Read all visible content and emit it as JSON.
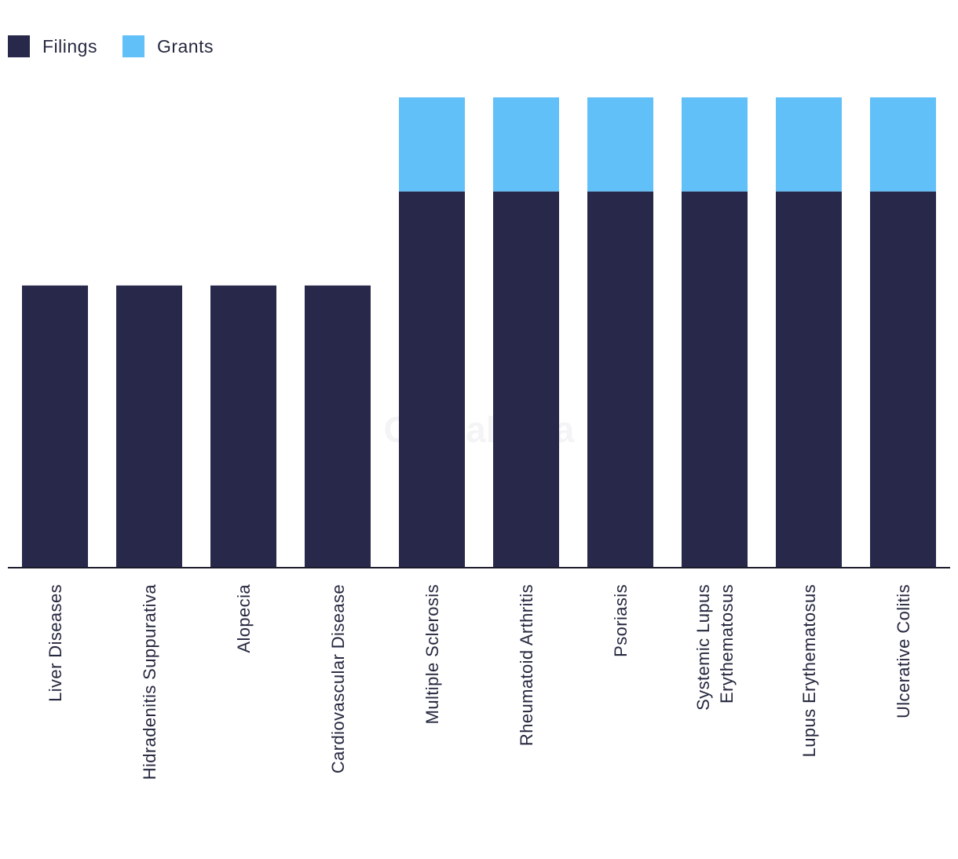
{
  "chart_data": {
    "type": "bar",
    "stacked": true,
    "title": "",
    "xlabel": "",
    "ylabel": "",
    "ylim": [
      0,
      2
    ],
    "grid": false,
    "legend_position": "top-left",
    "watermark": "GlobalData",
    "categories": [
      "Liver Diseases",
      "Hidradenitis Suppurativa",
      "Alopecia",
      "Cardiovascular Disease",
      "Multiple Sclerosis",
      "Rheumatoid Arthritis",
      "Psoriasis",
      "Systemic Lupus Erythematosus",
      "Lupus Erythematosus",
      "Ulcerative Colitis"
    ],
    "series": [
      {
        "name": "Filings",
        "color": "#27284a",
        "values": [
          1.2,
          1.2,
          1.2,
          1.2,
          1.6,
          1.6,
          1.6,
          1.6,
          1.6,
          1.6
        ]
      },
      {
        "name": "Grants",
        "color": "#62c0f8",
        "values": [
          0,
          0,
          0,
          0,
          0.4,
          0.4,
          0.4,
          0.4,
          0.4,
          0.4
        ]
      }
    ]
  }
}
